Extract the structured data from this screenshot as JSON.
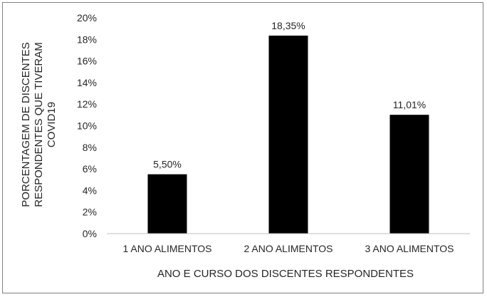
{
  "chart_data": {
    "type": "bar",
    "categories": [
      "1 ANO ALIMENTOS",
      "2 ANO ALIMENTOS",
      "3 ANO ALIMENTOS"
    ],
    "values": [
      5.5,
      18.35,
      11.01
    ],
    "value_labels": [
      "5,50%",
      "18,35%",
      "11,01%"
    ],
    "title": "",
    "xlabel": "ANO E CURSO DOS DISCENTES RESPONDENTES",
    "ylabel_lines": [
      "PORCENTAGEM DE DISCENTES",
      "RESPONDENTES QUE TIVERAM",
      "COVID19"
    ],
    "ylim": [
      0,
      20
    ],
    "y_ticks": [
      0,
      2,
      4,
      6,
      8,
      10,
      12,
      14,
      16,
      18,
      20
    ],
    "y_tick_labels": [
      "0%",
      "2%",
      "4%",
      "6%",
      "8%",
      "10%",
      "12%",
      "14%",
      "16%",
      "18%",
      "20%"
    ],
    "grid": false,
    "legend": "none",
    "bar_color": "#000000",
    "axis_color": "#bfbfbf"
  }
}
